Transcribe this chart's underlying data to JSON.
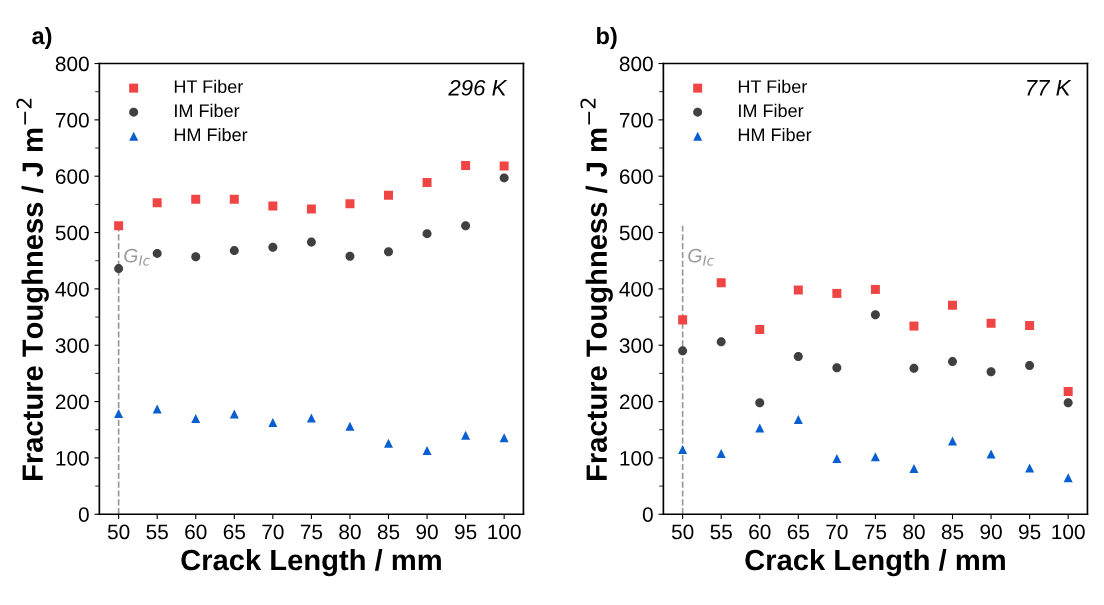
{
  "chart_data": [
    {
      "type": "scatter",
      "title": "a)",
      "xlabel": "Crack Length / mm",
      "ylabel": "Fracture Toughness / J m$^{−2}$",
      "x": [
        50,
        55,
        60,
        65,
        70,
        75,
        80,
        85,
        90,
        95,
        100
      ],
      "xlim": [
        47.5,
        102.5
      ],
      "xticks": [
        50,
        55,
        60,
        65,
        70,
        75,
        80,
        85,
        90,
        95,
        100
      ],
      "ylim": [
        0,
        800
      ],
      "yticks": [
        0,
        100,
        200,
        300,
        400,
        500,
        600,
        700,
        800
      ],
      "grid": false,
      "legend": "top left",
      "annotations": [
        "296 K"
      ],
      "ref_lines": [
        {
          "axis": "x",
          "value": 50,
          "label": "G$_{Ic}$",
          "color": "#999999",
          "line_style": "dashed"
        }
      ],
      "series": [
        {
          "name": "HT Fiber",
          "color": "#f04545",
          "marker": "square",
          "values": [
            512,
            553,
            559,
            559,
            547,
            542,
            551,
            566,
            589,
            619,
            618
          ]
        },
        {
          "name": "IM Fiber",
          "color": "#404040",
          "marker": "circle",
          "values": [
            436,
            463,
            457,
            468,
            474,
            483,
            458,
            466,
            498,
            512,
            597
          ]
        },
        {
          "name": "HM Fiber",
          "color": "#0a5fd0",
          "marker": "triangle",
          "values": [
            179,
            187,
            170,
            178,
            163,
            171,
            156,
            126,
            113,
            140,
            136
          ]
        }
      ]
    },
    {
      "type": "scatter",
      "title": "b)",
      "xlabel": "Crack Length / mm",
      "ylabel": "Fracture Toughness / J m$^{−2}$",
      "x": [
        50,
        55,
        60,
        65,
        70,
        75,
        80,
        85,
        90,
        95,
        100
      ],
      "xlim": [
        47.5,
        102.5
      ],
      "xticks": [
        50,
        55,
        60,
        65,
        70,
        75,
        80,
        85,
        90,
        95,
        100
      ],
      "ylim": [
        0,
        800
      ],
      "yticks": [
        0,
        100,
        200,
        300,
        400,
        500,
        600,
        700,
        800
      ],
      "grid": false,
      "legend": "top left",
      "annotations": [
        "77 K"
      ],
      "ref_lines": [
        {
          "axis": "x",
          "value": 50,
          "label": "G$_{Ic}$",
          "color": "#999999",
          "line_style": "dashed"
        }
      ],
      "series": [
        {
          "name": "HT Fiber",
          "color": "#f04545",
          "marker": "square",
          "values": [
            345,
            411,
            328,
            398,
            392,
            399,
            334,
            371,
            339,
            335,
            218
          ]
        },
        {
          "name": "IM Fiber",
          "color": "#404040",
          "marker": "circle",
          "values": [
            290,
            306,
            198,
            280,
            260,
            354,
            259,
            271,
            253,
            264,
            198
          ]
        },
        {
          "name": "HM Fiber",
          "color": "#0a5fd0",
          "marker": "triangle",
          "values": [
            115,
            108,
            153,
            168,
            99,
            102,
            81,
            130,
            107,
            82,
            65
          ]
        }
      ]
    }
  ]
}
